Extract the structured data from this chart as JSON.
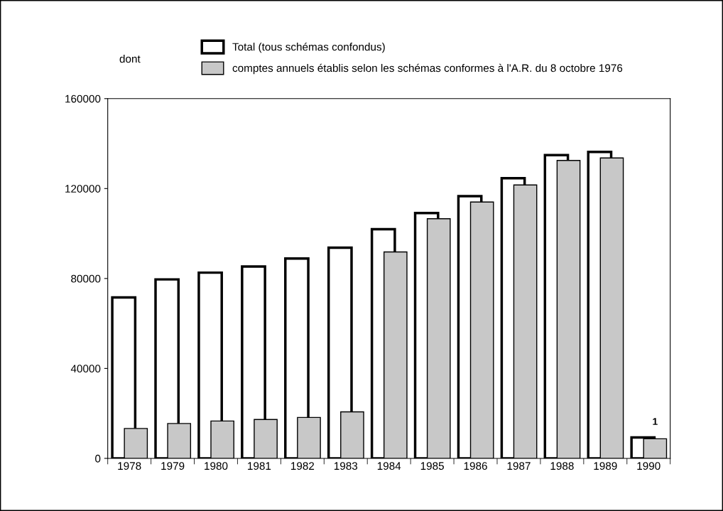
{
  "chart_data": {
    "type": "bar",
    "categories": [
      "1978",
      "1979",
      "1980",
      "1981",
      "1982",
      "1983",
      "1984",
      "1985",
      "1986",
      "1987",
      "1988",
      "1989",
      "1990"
    ],
    "series": [
      {
        "name": "Total (tous schémas confondus)",
        "color": "#ffffff",
        "values": [
          71600,
          79600,
          82600,
          85300,
          88900,
          93700,
          101900,
          109100,
          116600,
          124600,
          134900,
          136300,
          9300
        ]
      },
      {
        "name": "comptes annuels établis selon les schémas conformes à l'A.R. du 8 octobre 1976",
        "color": "#c8c8c8",
        "values": [
          13300,
          15500,
          16600,
          17300,
          18200,
          20700,
          91800,
          106600,
          114000,
          121600,
          132500,
          133600,
          8700
        ]
      }
    ],
    "ylim": [
      0,
      160000
    ],
    "yticks": [
      0,
      40000,
      80000,
      120000,
      160000
    ],
    "grid": false,
    "legend": "top",
    "annotations": [
      "dont",
      {
        "text": "1",
        "x": "1990",
        "y": 8700
      }
    ]
  }
}
